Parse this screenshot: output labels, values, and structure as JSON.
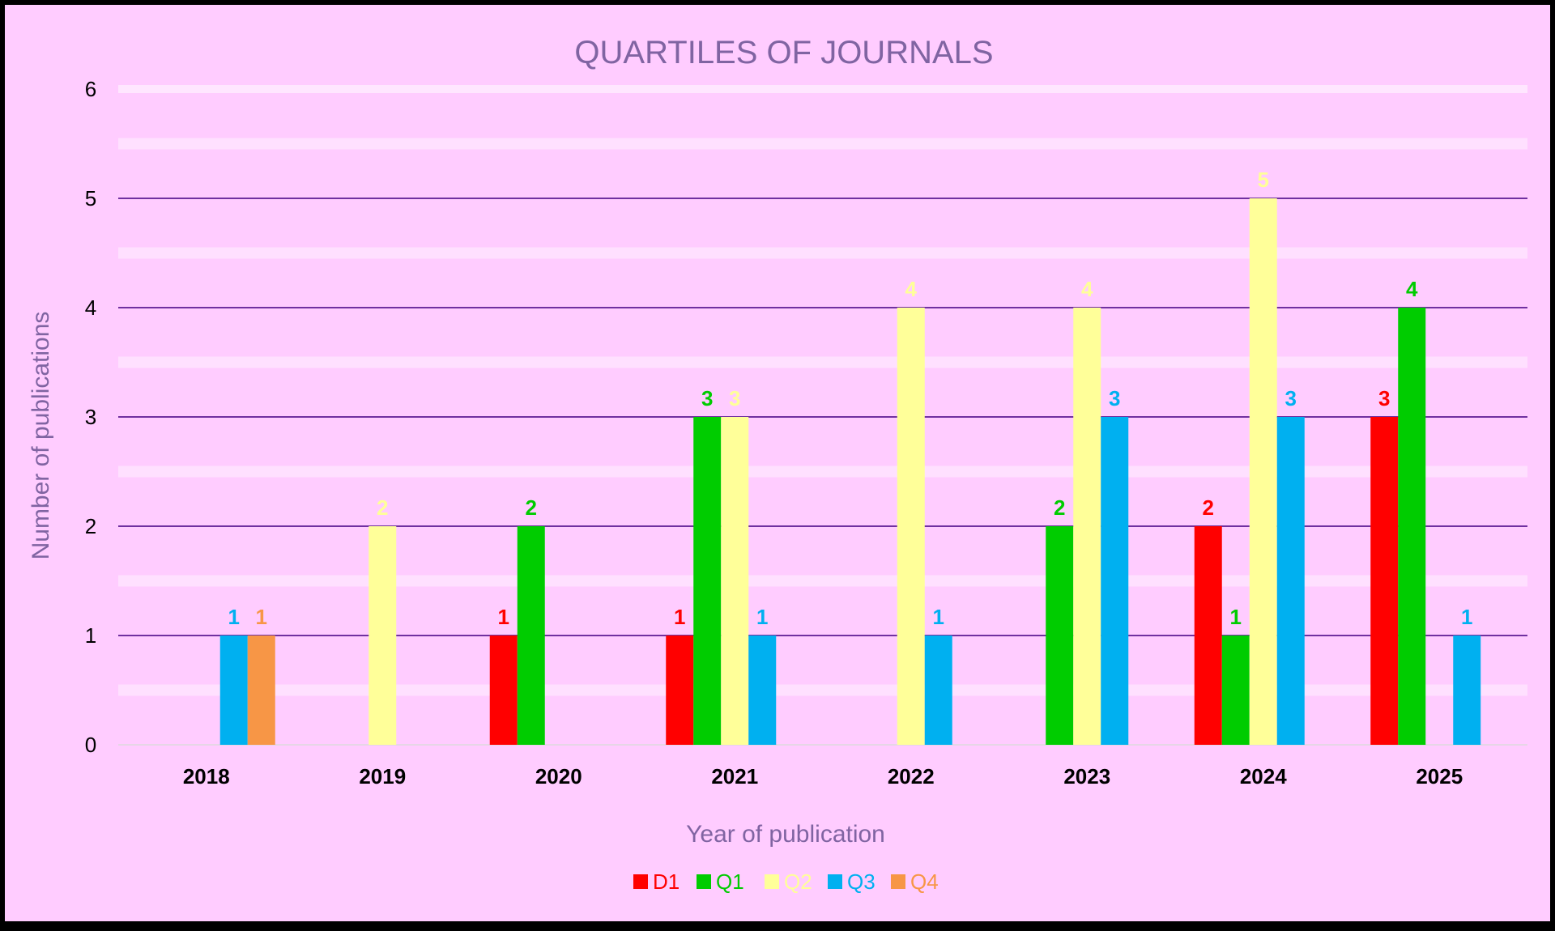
{
  "chart_data": {
    "type": "bar",
    "title": "QUARTILES OF JOURNALS",
    "xlabel": "Year of publication",
    "ylabel": "Number of publications",
    "categories": [
      "2018",
      "2019",
      "2020",
      "2021",
      "2022",
      "2023",
      "2024",
      "2025"
    ],
    "yticks": [
      "0",
      "1",
      "2",
      "3",
      "4",
      "5",
      "6"
    ],
    "ylim": [
      0,
      6
    ],
    "grid": true,
    "legend_position": "bottom",
    "series": [
      {
        "name": "D1",
        "color": "#FF0000",
        "values": [
          0,
          0,
          1,
          1,
          0,
          0,
          2,
          3
        ]
      },
      {
        "name": "Q1",
        "color": "#00CC00",
        "values": [
          0,
          0,
          2,
          3,
          0,
          2,
          1,
          4
        ]
      },
      {
        "name": "Q2",
        "color": "#FFFF99",
        "values": [
          0,
          2,
          0,
          3,
          4,
          4,
          5,
          0
        ]
      },
      {
        "name": "Q3",
        "color": "#00B0F0",
        "values": [
          1,
          0,
          0,
          1,
          1,
          3,
          3,
          1
        ]
      },
      {
        "name": "Q4",
        "color": "#F79646",
        "values": [
          1,
          0,
          0,
          0,
          0,
          0,
          0,
          0
        ]
      }
    ],
    "background_color": "#FFCCFF",
    "gridline_color": "#7030A0",
    "title_color": "#8064A2"
  }
}
